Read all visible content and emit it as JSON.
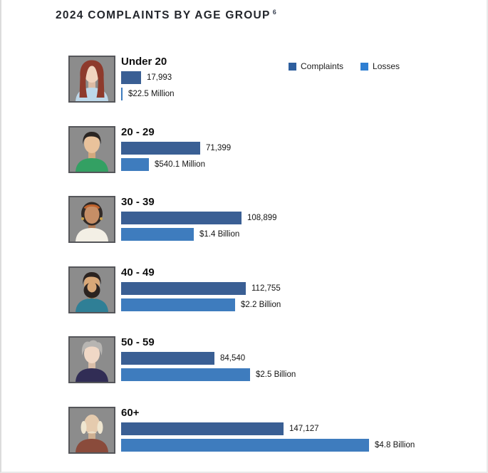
{
  "header": {
    "title": "2024 COMPLAINTS BY AGE GROUP",
    "footnote_marker": "6"
  },
  "legend": {
    "position": "top-right",
    "items": [
      {
        "label": "Complaints",
        "color": "#2e5f9e"
      },
      {
        "label": "Losses",
        "color": "#2f7fd2"
      }
    ]
  },
  "chart_data": {
    "type": "bar",
    "orientation": "horizontal",
    "title": "2024 COMPLAINTS BY AGE GROUP",
    "footnote_marker": "6",
    "legend": [
      "Complaints",
      "Losses"
    ],
    "legend_position": "top-right",
    "grid": false,
    "categories": [
      "Under 20",
      "20 - 29",
      "30 - 39",
      "40 - 49",
      "50 - 59",
      "60+"
    ],
    "series": [
      {
        "name": "Complaints",
        "unit": "complaints",
        "color": "#3a5f94",
        "values": [
          17993,
          71399,
          108899,
          112755,
          84540,
          147127
        ],
        "labels": [
          "17,993",
          "71,399",
          "108,899",
          "112,755",
          "84,540",
          "147,127"
        ]
      },
      {
        "name": "Losses",
        "unit": "USD millions",
        "color": "#3e7cbe",
        "values_usd_millions": [
          22.5,
          540.1,
          1400,
          2200,
          2500,
          4800
        ],
        "labels": [
          "$22.5 Million",
          "$540.1 Million",
          "$1.4 Billion",
          "$2.2 Billion",
          "$2.5 Billion",
          "$4.8 Billion"
        ]
      }
    ]
  },
  "avatars": [
    {
      "name": "young-woman-red-hair",
      "style": "long-hair",
      "bg": "#8c8c8c",
      "hair": "#8e3a2c",
      "skin": "#f1d4bf",
      "neck": "#dcbaa3",
      "shirt": "#bdd8ea"
    },
    {
      "name": "young-man-green-shirt",
      "style": "short-hair",
      "bg": "#8c8c8c",
      "hair": "#2a2522",
      "skin": "#e9c29b",
      "neck": "#d2a87e",
      "shirt": "#33a063"
    },
    {
      "name": "woman-headband",
      "style": "headband",
      "bg": "#8c8c8c",
      "hair": "#322a26",
      "skin": "#c68e66",
      "neck": "#b07a55",
      "shirt": "#f3efe5",
      "accent": "#c0622c",
      "accent2": "#c9a04b"
    },
    {
      "name": "man-beard-teal-shirt",
      "style": "beard",
      "bg": "#8c8c8c",
      "hair": "#2b2320",
      "skin": "#d9a878",
      "neck": "#c2905f",
      "shirt": "#2f7f96"
    },
    {
      "name": "person-gray-hair",
      "style": "gray-swept",
      "bg": "#8c8c8c",
      "hair": "#b7b5b2",
      "skin": "#f0d8c6",
      "neck": "#d9bea8",
      "shirt": "#312d55"
    },
    {
      "name": "elderly-man",
      "style": "elder-bald",
      "bg": "#8c8c8c",
      "hair": "#efe6d0",
      "skin": "#e5cbae",
      "neck": "#ceb092",
      "shirt": "#8a4b3b"
    }
  ]
}
